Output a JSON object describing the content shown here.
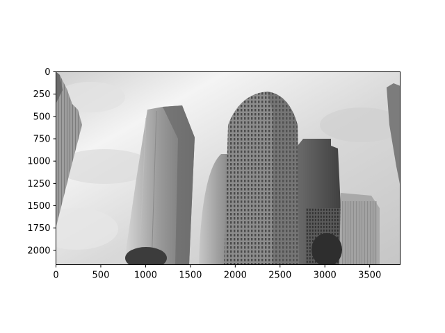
{
  "figure": {
    "type": "image",
    "xticks": [
      "0",
      "500",
      "1000",
      "1500",
      "2000",
      "2500",
      "3000",
      "3500"
    ],
    "yticks": [
      "0",
      "250",
      "500",
      "750",
      "1000",
      "1250",
      "1500",
      "1750",
      "2000"
    ],
    "xlim": [
      0,
      3840
    ],
    "ylim": [
      2160,
      0
    ],
    "tick_values_x": [
      0,
      500,
      1000,
      1500,
      2000,
      2500,
      3000,
      3500
    ],
    "tick_values_y": [
      0,
      250,
      500,
      750,
      1000,
      1250,
      1500,
      1750,
      2000
    ],
    "image_description_icon": "grayscale-skyscrapers-photo"
  }
}
